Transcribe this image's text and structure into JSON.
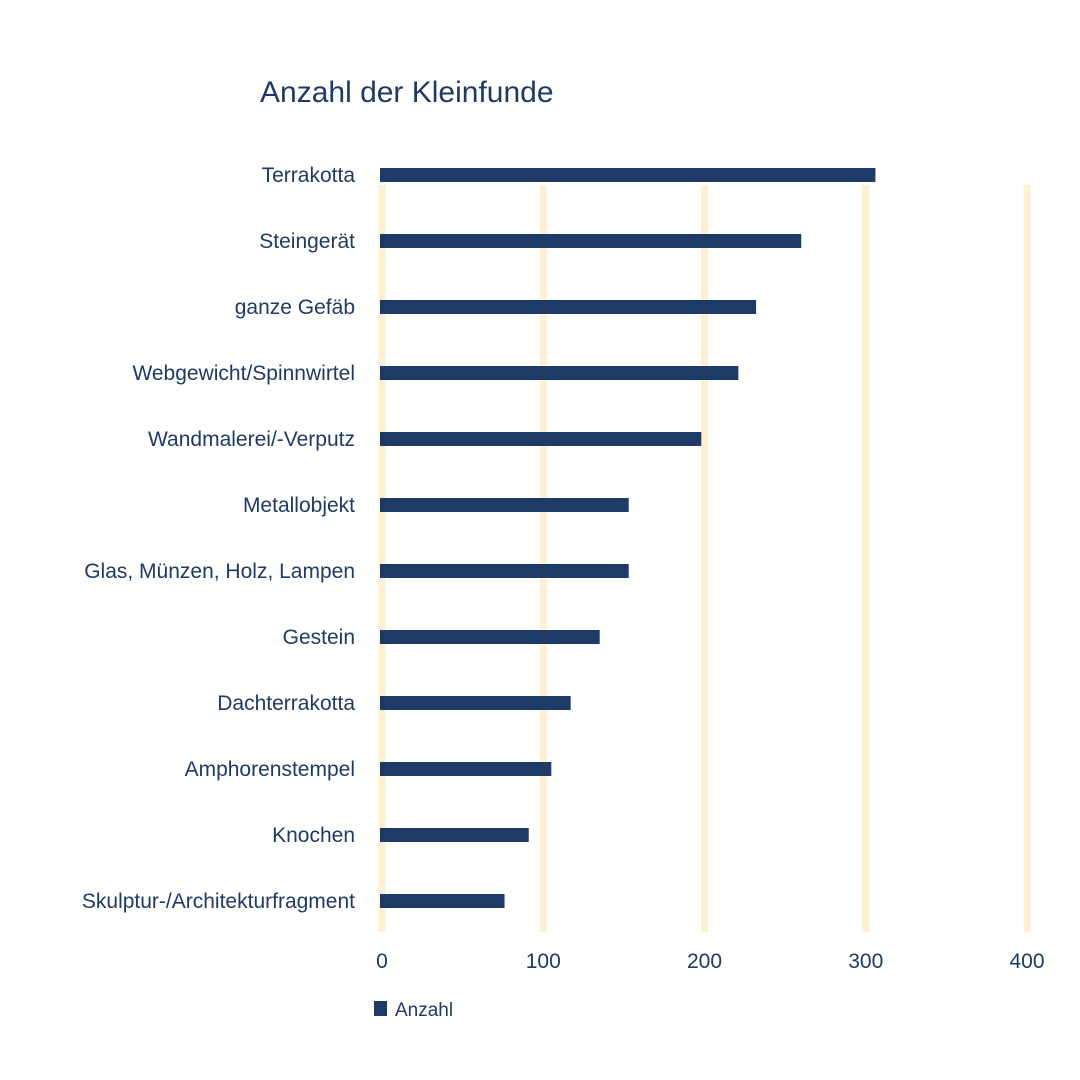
{
  "chart_data": {
    "type": "bar",
    "orientation": "horizontal",
    "title": "Anzahl der Kleinfunde",
    "categories": [
      "Terrakotta",
      "Steingerät",
      "ganze Gefäb",
      "Webgewicht/Spinnwirtel",
      "Wandmalerei/-Verputz",
      "Metallobjekt",
      "Glas, Münzen, Holz, Lampen",
      "Gestein",
      "Dachterrakotta",
      "Amphorenstempel",
      "Knochen",
      "Skulptur-/Architekturfragment"
    ],
    "series": [
      {
        "name": "Anzahl",
        "values": [
          306,
          260,
          232,
          221,
          198,
          153,
          153,
          135,
          117,
          105,
          91,
          76
        ]
      }
    ],
    "xlim": [
      0,
      400
    ],
    "xticks": [
      "0",
      "100",
      "200",
      "300",
      "400"
    ],
    "grid": true,
    "legend": "bottom-left",
    "colors": {
      "bar": "#1e3a66",
      "grid": "#fdf0d3",
      "text": "#1e3a66"
    }
  }
}
